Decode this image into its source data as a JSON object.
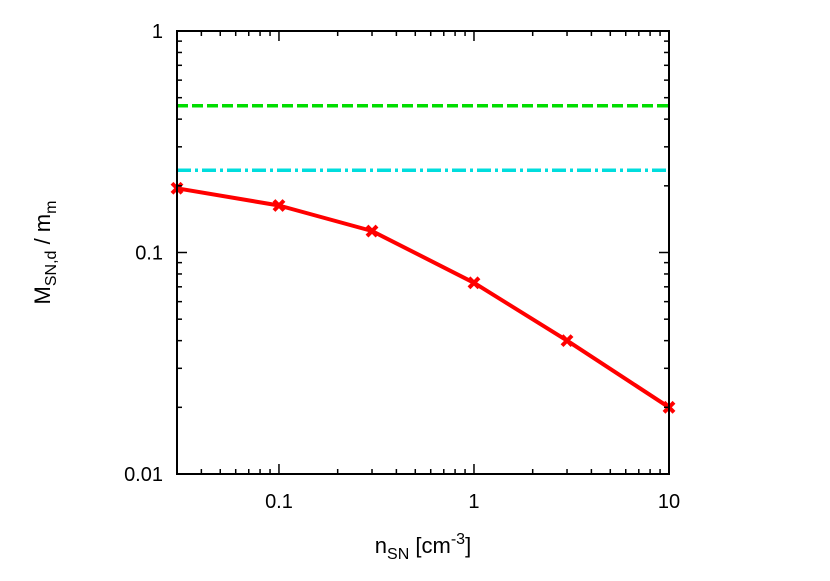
{
  "chart_data": {
    "type": "line",
    "xscale": "log",
    "yscale": "log",
    "xlim": [
      0.03,
      10
    ],
    "ylim": [
      0.01,
      1
    ],
    "x_ticks": [
      {
        "value": 0.1,
        "label": "0.1"
      },
      {
        "value": 1,
        "label": "1"
      },
      {
        "value": 10,
        "label": "10"
      }
    ],
    "y_ticks": [
      {
        "value": 0.01,
        "label": "0.01"
      },
      {
        "value": 0.1,
        "label": "0.1"
      },
      {
        "value": 1,
        "label": "1"
      }
    ],
    "xlabel": {
      "base": "n",
      "sub": "SN",
      "mid": " [cm",
      "sup": "-3",
      "end": "]"
    },
    "ylabel": {
      "base1": "M",
      "sub1": "SN,d",
      "mid": " / m",
      "sub2": "m"
    },
    "grid": false,
    "series": [
      {
        "color": "#ff0000",
        "style": "solid",
        "marker": "x",
        "x": [
          0.03,
          0.1,
          0.3,
          1,
          3,
          10
        ],
        "y": [
          0.195,
          0.163,
          0.125,
          0.073,
          0.04,
          0.02
        ]
      },
      {
        "color": "#00dd00",
        "style": "dashed",
        "x": [
          0.03,
          10
        ],
        "y": [
          0.46,
          0.46
        ]
      },
      {
        "color": "#00dddd",
        "style": "dashdot",
        "x": [
          0.03,
          10
        ],
        "y": [
          0.235,
          0.235
        ]
      }
    ]
  }
}
